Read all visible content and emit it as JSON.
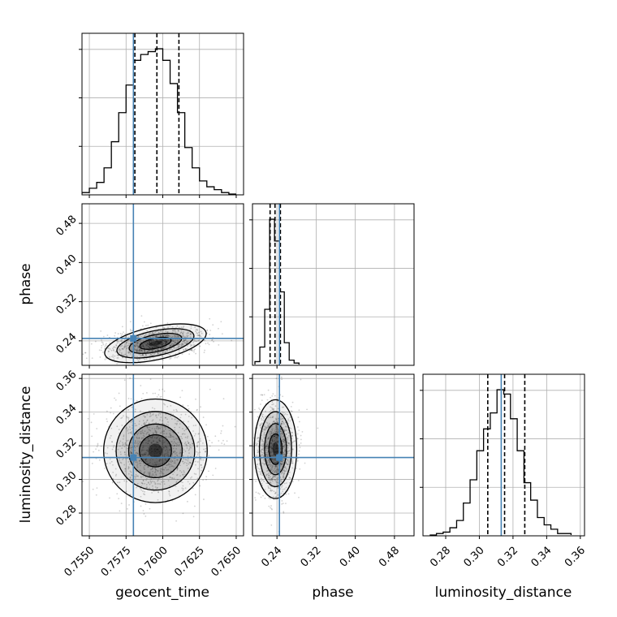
{
  "chart_data": {
    "type": "corner",
    "parameters": [
      "geocent_time",
      "phase",
      "luminosity_distance"
    ],
    "axis_labels": {
      "geocent_time": "geocent_time",
      "phase": "phase",
      "luminosity_distance": "luminosity_distance"
    },
    "ranges": {
      "geocent_time": [
        0.7545,
        0.7655
      ],
      "phase": [
        0.19,
        0.52
      ],
      "luminosity_distance": [
        0.2665,
        0.3625
      ]
    },
    "ticks": {
      "geocent_time": {
        "values": [
          0.755,
          0.7575,
          0.76,
          0.7625,
          0.765
        ],
        "labels": [
          "0.7550",
          "0.7575",
          "0.7600",
          "0.7625",
          "0.7650"
        ]
      },
      "phase": {
        "values": [
          0.24,
          0.32,
          0.4,
          0.48
        ],
        "labels": [
          "0.24",
          "0.32",
          "0.40",
          "0.48"
        ]
      },
      "luminosity_distance": {
        "values": [
          0.28,
          0.3,
          0.32,
          0.34,
          0.36
        ],
        "labels": [
          "0.28",
          "0.30",
          "0.32",
          "0.34",
          "0.36"
        ]
      }
    },
    "truths": {
      "geocent_time": 0.758,
      "phase": 0.245,
      "luminosity_distance": 0.313
    },
    "quantiles": {
      "geocent_time": [
        0.7581,
        0.7596,
        0.7611
      ],
      "phase": [
        0.226,
        0.236,
        0.247
      ],
      "luminosity_distance": [
        0.305,
        0.315,
        0.327
      ]
    },
    "histograms": {
      "geocent_time": {
        "edges": [
          0.7545,
          0.755,
          0.7555,
          0.756,
          0.7565,
          0.757,
          0.7575,
          0.758,
          0.7585,
          0.759,
          0.7595,
          0.76,
          0.7605,
          0.761,
          0.7615,
          0.762,
          0.7625,
          0.763,
          0.7635,
          0.764,
          0.7645,
          0.765
        ],
        "counts": [
          1,
          4,
          8,
          18,
          36,
          56,
          75,
          92,
          96,
          98,
          100,
          92,
          76,
          56,
          32,
          18,
          9,
          5,
          3,
          1,
          0
        ]
      },
      "phase": {
        "edges": [
          0.195,
          0.205,
          0.215,
          0.225,
          0.235,
          0.245,
          0.255,
          0.265,
          0.275,
          0.285
        ],
        "counts": [
          2,
          12,
          38,
          100,
          85,
          50,
          15,
          3,
          1
        ]
      },
      "luminosity_distance": {
        "edges": [
          0.2705,
          0.2745,
          0.2785,
          0.2825,
          0.2865,
          0.2905,
          0.2945,
          0.2985,
          0.3025,
          0.3065,
          0.3105,
          0.3145,
          0.3185,
          0.3225,
          0.3265,
          0.3305,
          0.3345,
          0.3385,
          0.3425,
          0.3465,
          0.3505,
          0.3545
        ],
        "counts": [
          0,
          1,
          2,
          5,
          10,
          22,
          38,
          58,
          73,
          84,
          100,
          97,
          80,
          58,
          36,
          24,
          12,
          7,
          4,
          1,
          1
        ]
      }
    },
    "density_peaks": {
      "phase_vs_geocent_time": {
        "x": 0.7595,
        "y": 0.235
      },
      "luminosity_distance_vs_geocent_time": {
        "x": 0.7595,
        "y": 0.317
      },
      "luminosity_distance_vs_phase": {
        "x": 0.237,
        "y": 0.318
      }
    },
    "colors": {
      "truth": "#4682b4",
      "contour": "#000000",
      "hist": "#000000",
      "grid": "#b0b0b0"
    },
    "grid": true
  }
}
